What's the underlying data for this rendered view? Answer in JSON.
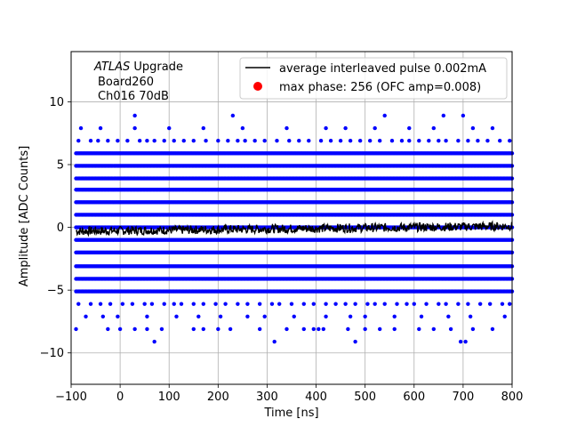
{
  "chart_data": {
    "type": "scatter",
    "xlabel": "Time [ns]",
    "ylabel": "Amplitude [ADC Counts]",
    "xlim": [
      -100,
      800
    ],
    "ylim": [
      -12.5,
      14
    ],
    "x_ticks": [
      -100,
      0,
      100,
      200,
      300,
      400,
      500,
      600,
      700,
      800
    ],
    "y_ticks": [
      -10,
      -5,
      0,
      5,
      10
    ],
    "grid": true,
    "legend_position": "top-right",
    "annotation": {
      "line1_italic": "ATLAS",
      "line1_rest": " Upgrade",
      "line2": "Board260",
      "line3": "Ch016 70dB"
    },
    "series": [
      {
        "name": "average interleaved pulse 0.002mA",
        "kind": "line",
        "color": "#000000",
        "approx_level": -0.3,
        "approx_level_end": 0.1,
        "noise_amplitude": 0.35
      },
      {
        "name": "max phase: 256 (OFC amp=0.008)",
        "kind": "marker",
        "color": "#ff0000"
      },
      {
        "name": "",
        "kind": "samples",
        "color": "#0000ff",
        "x_range": [
          -90,
          800
        ],
        "dense_levels": [
          -5.1,
          -4.1,
          -3.1,
          -2.0,
          -1.0,
          0.0,
          1.0,
          2.0,
          3.0,
          3.9,
          4.9,
          5.9
        ],
        "sparse_levels": [
          {
            "y": 6.9,
            "x": [
              -85,
              -60,
              -45,
              -25,
              -5,
              15,
              40,
              55,
              70,
              90,
              110,
              130,
              150,
              175,
              200,
              220,
              240,
              255,
              275,
              295,
              320,
              345,
              365,
              385,
              410,
              430,
              450,
              470,
              490,
              510,
              530,
              555,
              575,
              590,
              610,
              630,
              650,
              665,
              690,
              710,
              730,
              750,
              775,
              795
            ]
          },
          {
            "y": 7.9,
            "x": [
              -80,
              -40,
              30,
              100,
              170,
              250,
              340,
              420,
              460,
              520,
              590,
              640,
              720,
              760
            ]
          },
          {
            "y": 8.9,
            "x": [
              30,
              230,
              540,
              660,
              700
            ]
          },
          {
            "y": -6.1,
            "x": [
              -85,
              -60,
              -40,
              -20,
              5,
              25,
              50,
              65,
              90,
              110,
              125,
              150,
              170,
              195,
              215,
              240,
              260,
              285,
              310,
              325,
              350,
              375,
              395,
              420,
              440,
              460,
              480,
              505,
              520,
              540,
              565,
              585,
              600,
              625,
              650,
              665,
              690,
              710,
              735,
              755,
              780,
              795
            ]
          },
          {
            "y": -7.1,
            "x": [
              -70,
              -35,
              -5,
              55,
              115,
              160,
              205,
              260,
              295,
              355,
              420,
              470,
              500,
              560,
              615,
              670,
              715,
              785
            ]
          },
          {
            "y": -8.1,
            "x": [
              -90,
              -25,
              0,
              30,
              55,
              85,
              150,
              170,
              200,
              225,
              285,
              340,
              375,
              395,
              405,
              415,
              465,
              500,
              530,
              560,
              610,
              640,
              675,
              720,
              760
            ]
          },
          {
            "y": -9.1,
            "x": [
              70,
              315,
              480,
              695,
              705
            ]
          }
        ]
      }
    ]
  }
}
